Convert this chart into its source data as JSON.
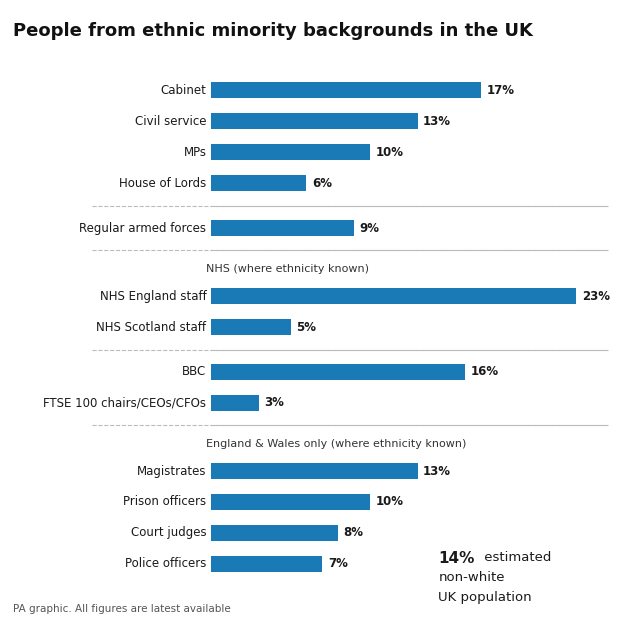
{
  "title": "People from ethnic minority backgrounds in the UK",
  "bar_color": "#1a7ab5",
  "background_color": "#ffffff",
  "footer": "PA graphic. All figures are latest available",
  "sections": [
    {
      "header": null,
      "items": [
        {
          "label": "Cabinet",
          "value": 17
        },
        {
          "label": "Civil service",
          "value": 13
        },
        {
          "label": "MPs",
          "value": 10
        },
        {
          "label": "House of Lords",
          "value": 6
        }
      ]
    },
    {
      "header": null,
      "items": [
        {
          "label": "Regular armed forces",
          "value": 9
        }
      ]
    },
    {
      "header": "NHS (where ethnicity known)",
      "items": [
        {
          "label": "NHS England staff",
          "value": 23
        },
        {
          "label": "NHS Scotland staff",
          "value": 5
        }
      ]
    },
    {
      "header": null,
      "items": [
        {
          "label": "BBC",
          "value": 16
        },
        {
          "label": "FTSE 100 chairs/CEOs/CFOs",
          "value": 3
        }
      ]
    },
    {
      "header": "England & Wales only (where ethnicity known)",
      "items": [
        {
          "label": "Magistrates",
          "value": 13
        },
        {
          "label": "Prison officers",
          "value": 10
        },
        {
          "label": "Court judges",
          "value": 8
        },
        {
          "label": "Police officers",
          "value": 7
        }
      ]
    }
  ]
}
